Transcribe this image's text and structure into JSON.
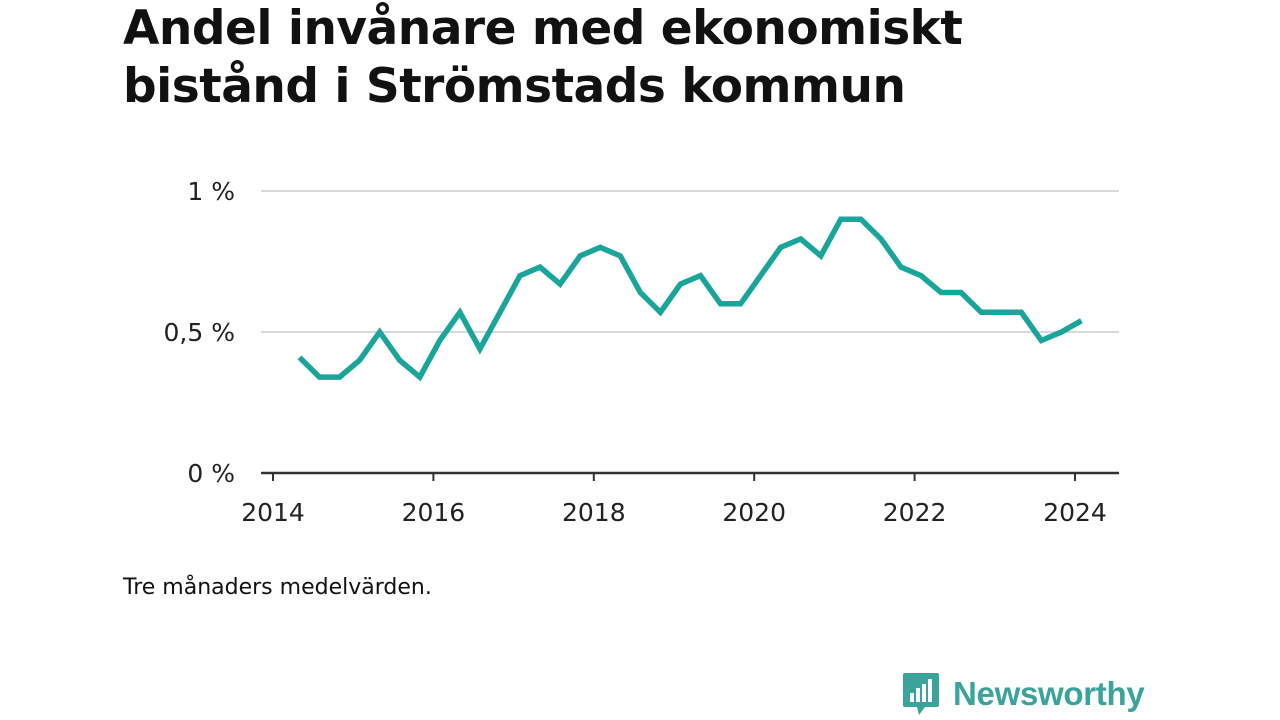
{
  "title_line1": "Andel invånare med ekonomiskt",
  "title_line2": "bistånd i Strömstads kommun",
  "caption": "Tre månaders medelvärden.",
  "brand": {
    "name": "Newsworthy",
    "logo_icon": "bar-chart-speech-bubble-icon",
    "color": "#3aa39b"
  },
  "chart_data": {
    "type": "line",
    "title": "Andel invånare med ekonomiskt bistånd i Strömstads kommun",
    "xlabel": "",
    "ylabel": "",
    "x_ticks": [
      2014,
      2016,
      2018,
      2020,
      2022,
      2024
    ],
    "y_ticks": [
      {
        "value": 0,
        "label": "0 %"
      },
      {
        "value": 0.5,
        "label": "0,5 %"
      },
      {
        "value": 1,
        "label": "1 %"
      }
    ],
    "xlim": [
      2014,
      2024.5
    ],
    "ylim": [
      0,
      1
    ],
    "grid": true,
    "line_color": "#1aa59b",
    "series": [
      {
        "name": "",
        "x": [
          2014.33,
          2014.58,
          2014.83,
          2015.08,
          2015.33,
          2015.58,
          2015.83,
          2016.08,
          2016.33,
          2016.58,
          2016.83,
          2017.08,
          2017.33,
          2017.58,
          2017.83,
          2018.08,
          2018.33,
          2018.58,
          2018.83,
          2019.08,
          2019.33,
          2019.58,
          2019.83,
          2020.08,
          2020.33,
          2020.58,
          2020.83,
          2021.08,
          2021.33,
          2021.58,
          2021.83,
          2022.08,
          2022.33,
          2022.58,
          2022.83,
          2023.08,
          2023.33,
          2023.58,
          2023.83,
          2024.08
        ],
        "values": [
          0.41,
          0.34,
          0.34,
          0.4,
          0.5,
          0.4,
          0.34,
          0.47,
          0.57,
          0.44,
          0.57,
          0.7,
          0.73,
          0.67,
          0.77,
          0.8,
          0.77,
          0.64,
          0.57,
          0.67,
          0.7,
          0.6,
          0.6,
          0.7,
          0.8,
          0.83,
          0.77,
          0.9,
          0.9,
          0.83,
          0.73,
          0.7,
          0.64,
          0.64,
          0.57,
          0.57,
          0.57,
          0.47,
          0.5,
          0.54
        ]
      }
    ]
  }
}
